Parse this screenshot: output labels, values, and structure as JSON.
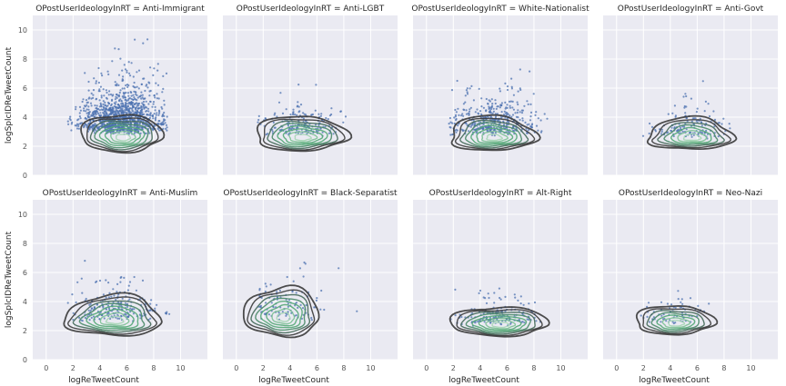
{
  "figure": {
    "background": "#ffffff",
    "panel_background": "#eaeaf2",
    "grid_color": "#ffffff",
    "point_color": "#4c72b0",
    "contour_colors": [
      "#3a3a3a",
      "#466a5a",
      "#4a8a68",
      "#55a877",
      "#7dc195",
      "#a6d6b5"
    ]
  },
  "chart_data": [
    {
      "type": "scatter",
      "title": "OPostUserIdeologyInRT = Anti-Immigrant",
      "xlabel": "",
      "ylabel": "logSplcIDReTweetCount",
      "xlim": [
        -1,
        12
      ],
      "ylim": [
        0,
        11
      ],
      "xticks": [
        0,
        2,
        4,
        6,
        8,
        10
      ],
      "yticks": [
        0,
        2,
        4,
        6,
        8,
        10
      ],
      "grid": true,
      "points": {
        "count": 1200,
        "x_center": 5.6,
        "x_spread": 1.5,
        "y_center": 3.2,
        "y_spread": 1.3,
        "y_min": 1.8,
        "x_max": 9.0,
        "y_max": 9.5
      },
      "density": {
        "center": [
          5.6,
          2.6
        ],
        "radius": [
          3.0,
          1.3
        ],
        "levels": 8
      }
    },
    {
      "type": "scatter",
      "title": "OPostUserIdeologyInRT = Anti-LGBT",
      "xlabel": "",
      "ylabel": "",
      "xlim": [
        -1,
        12
      ],
      "ylim": [
        0,
        11
      ],
      "xticks": [
        0,
        2,
        4,
        6,
        8,
        10
      ],
      "yticks": [
        0,
        2,
        4,
        6,
        8,
        10
      ],
      "grid": true,
      "points": {
        "count": 180,
        "x_center": 4.6,
        "x_spread": 1.6,
        "y_center": 3.0,
        "y_spread": 1.0,
        "y_min": 1.9,
        "x_max": 9.0,
        "y_max": 7.7
      },
      "density": {
        "center": [
          4.8,
          2.6
        ],
        "radius": [
          3.4,
          1.2
        ],
        "levels": 8
      }
    },
    {
      "type": "scatter",
      "title": "OPostUserIdeologyInRT = White-Nationalist",
      "xlabel": "",
      "ylabel": "",
      "xlim": [
        -1,
        12
      ],
      "ylim": [
        0,
        11
      ],
      "xticks": [
        0,
        2,
        4,
        6,
        8,
        10
      ],
      "yticks": [
        0,
        2,
        4,
        6,
        8,
        10
      ],
      "grid": true,
      "points": {
        "count": 420,
        "x_center": 5.0,
        "x_spread": 1.6,
        "y_center": 3.1,
        "y_spread": 1.1,
        "y_min": 1.8,
        "x_max": 9.0,
        "y_max": 7.6
      },
      "density": {
        "center": [
          4.9,
          2.6
        ],
        "radius": [
          3.2,
          1.2
        ],
        "levels": 8
      }
    },
    {
      "type": "scatter",
      "title": "OPostUserIdeologyInRT = Anti-Govt",
      "xlabel": "",
      "ylabel": "",
      "xlim": [
        -1,
        12
      ],
      "ylim": [
        0,
        11
      ],
      "xticks": [
        0,
        2,
        4,
        6,
        8,
        10
      ],
      "yticks": [
        0,
        2,
        4,
        6,
        8,
        10
      ],
      "grid": true,
      "points": {
        "count": 140,
        "x_center": 5.4,
        "x_spread": 1.5,
        "y_center": 2.9,
        "y_spread": 0.9,
        "y_min": 1.9,
        "x_max": 8.6,
        "y_max": 7.3
      },
      "density": {
        "center": [
          5.5,
          2.6
        ],
        "radius": [
          3.2,
          1.1
        ],
        "levels": 7
      }
    },
    {
      "type": "scatter",
      "title": "OPostUserIdeologyInRT = Anti-Muslim",
      "xlabel": "logReTweetCount",
      "ylabel": "logSplcIDReTweetCount",
      "xlim": [
        -1,
        12
      ],
      "ylim": [
        0,
        11
      ],
      "xticks": [
        0,
        2,
        4,
        6,
        8,
        10
      ],
      "yticks": [
        0,
        2,
        4,
        6,
        8,
        10
      ],
      "grid": true,
      "points": {
        "count": 220,
        "x_center": 5.0,
        "x_spread": 1.6,
        "y_center": 3.0,
        "y_spread": 1.0,
        "y_min": 1.9,
        "x_max": 9.3,
        "y_max": 7.1
      },
      "density": {
        "center": [
          5.0,
          2.7
        ],
        "radius": [
          3.6,
          1.4
        ],
        "levels": 8
      }
    },
    {
      "type": "scatter",
      "title": "OPostUserIdeologyInRT = Black-Separatist",
      "xlabel": "logReTweetCount",
      "ylabel": "",
      "xlim": [
        -1,
        12
      ],
      "ylim": [
        0,
        11
      ],
      "xticks": [
        0,
        2,
        4,
        6,
        8,
        10
      ],
      "yticks": [
        0,
        2,
        4,
        6,
        8,
        10
      ],
      "grid": true,
      "points": {
        "count": 110,
        "x_center": 3.6,
        "x_spread": 1.6,
        "y_center": 3.1,
        "y_spread": 1.1,
        "y_min": 1.9,
        "x_max": 9.0,
        "y_max": 6.8
      },
      "density": {
        "center": [
          3.4,
          2.9
        ],
        "radius": [
          2.8,
          1.7
        ],
        "levels": 8
      }
    },
    {
      "type": "scatter",
      "title": "OPostUserIdeologyInRT = Alt-Right",
      "xlabel": "logReTweetCount",
      "ylabel": "",
      "xlim": [
        -1,
        12
      ],
      "ylim": [
        0,
        11
      ],
      "xticks": [
        0,
        2,
        4,
        6,
        8,
        10
      ],
      "yticks": [
        0,
        2,
        4,
        6,
        8,
        10
      ],
      "grid": true,
      "points": {
        "count": 150,
        "x_center": 5.4,
        "x_spread": 1.4,
        "y_center": 2.7,
        "y_spread": 0.8,
        "y_min": 1.9,
        "x_max": 8.6,
        "y_max": 5.6
      },
      "density": {
        "center": [
          5.4,
          2.4
        ],
        "radius": [
          3.6,
          1.0
        ],
        "levels": 8
      }
    },
    {
      "type": "scatter",
      "title": "OPostUserIdeologyInRT = Neo-Nazi",
      "xlabel": "logReTweetCount",
      "ylabel": "",
      "xlim": [
        -1,
        12
      ],
      "ylim": [
        0,
        11
      ],
      "xticks": [
        0,
        2,
        4,
        6,
        8,
        10
      ],
      "yticks": [
        0,
        2,
        4,
        6,
        8,
        10
      ],
      "grid": true,
      "points": {
        "count": 70,
        "x_center": 4.2,
        "x_spread": 1.3,
        "y_center": 2.7,
        "y_spread": 0.8,
        "y_min": 1.9,
        "x_max": 8.8,
        "y_max": 4.9
      },
      "density": {
        "center": [
          4.3,
          2.5
        ],
        "radius": [
          2.9,
          1.0
        ],
        "levels": 7
      }
    }
  ]
}
